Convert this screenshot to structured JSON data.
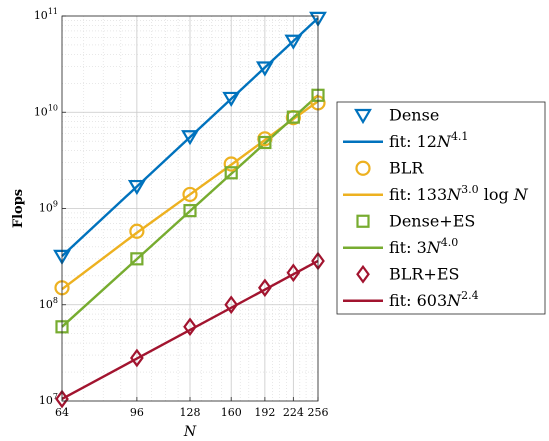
{
  "chart_data": {
    "type": "line",
    "title": "",
    "xlabel": "N",
    "ylabel": "Flops",
    "xscale": "log",
    "yscale": "log",
    "xlim": [
      64,
      256
    ],
    "ylim": [
      10000000,
      100000000000
    ],
    "x_ticks": [
      64,
      96,
      128,
      160,
      192,
      224,
      256
    ],
    "x_tick_labels": [
      "64",
      "96",
      "128",
      "160",
      "192",
      "224",
      "256"
    ],
    "y_ticks": [
      {
        "value": 10000000,
        "base": "10",
        "exp": "7"
      },
      {
        "value": 100000000,
        "base": "10",
        "exp": "8"
      },
      {
        "value": 1000000000,
        "base": "10",
        "exp": "9"
      },
      {
        "value": 10000000000,
        "base": "10",
        "exp": "10"
      },
      {
        "value": 100000000000,
        "base": "10",
        "exp": "11"
      }
    ],
    "grid": true,
    "legend_position": "outside-right",
    "series": [
      {
        "name": "Dense",
        "kind": "markers",
        "marker": "triangle-down",
        "color": "#0072BD",
        "x": [
          64,
          96,
          128,
          160,
          192,
          224,
          256
        ],
        "y": [
          320000000,
          1700000000,
          5600000000,
          14000000000,
          29000000000,
          55000000000,
          95000000000
        ]
      },
      {
        "name": "fit: ",
        "coef": "12",
        "exp": "4.1",
        "extra": "",
        "kind": "fit",
        "color": "#0072BD",
        "x": [
          64,
          256
        ],
        "y": [
          320000000,
          95000000000
        ]
      },
      {
        "name": "BLR",
        "kind": "markers",
        "marker": "circle",
        "color": "#EDB120",
        "x": [
          64,
          96,
          128,
          160,
          192,
          224,
          256
        ],
        "y": [
          150000000,
          580000000,
          1400000000,
          2900000000,
          5300000000,
          8800000000,
          12500000000
        ]
      },
      {
        "name": "fit: ",
        "coef": "133",
        "exp": "3.0",
        "extra": "log N",
        "kind": "fit",
        "color": "#EDB120",
        "x": [
          64,
          96,
          128,
          160,
          192,
          224,
          256
        ],
        "y": [
          145000000,
          560000000,
          1400000000,
          2850000000,
          5150000000,
          8500000000,
          13000000000
        ]
      },
      {
        "name": "Dense+ES",
        "kind": "markers",
        "marker": "square",
        "color": "#77AC30",
        "x": [
          64,
          96,
          128,
          160,
          192,
          224,
          256
        ],
        "y": [
          59000000,
          300000000,
          950000000,
          2350000000,
          4850000000,
          8900000000,
          15000000000
        ]
      },
      {
        "name": "fit: ",
        "coef": "3",
        "exp": "4.0",
        "extra": "",
        "kind": "fit",
        "color": "#77AC30",
        "x": [
          64,
          256
        ],
        "y": [
          59000000,
          15000000000
        ]
      },
      {
        "name": "BLR+ES",
        "kind": "markers",
        "marker": "diamond",
        "color": "#A2142F",
        "x": [
          64,
          96,
          128,
          160,
          192,
          224,
          256
        ],
        "y": [
          10500000,
          28000000,
          59000000,
          100000000,
          150000000,
          215000000,
          285000000
        ]
      },
      {
        "name": "fit: ",
        "coef": "603",
        "exp": "2.4",
        "extra": "",
        "kind": "fit",
        "color": "#A2142F",
        "x": [
          64,
          256
        ],
        "y": [
          10500000,
          285000000
        ]
      }
    ]
  }
}
